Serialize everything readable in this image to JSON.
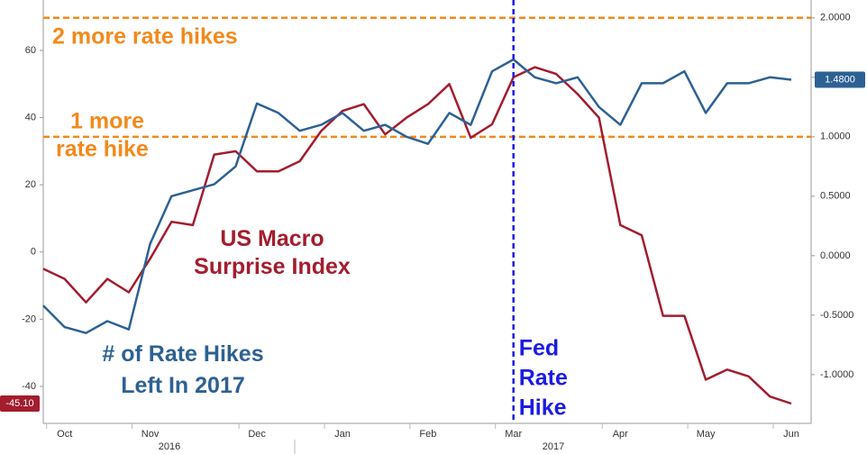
{
  "chart_data": {
    "type": "line",
    "categories": [
      null,
      "Oct",
      null,
      null,
      null,
      "Nov",
      null,
      null,
      null,
      null,
      "Dec",
      null,
      null,
      null,
      "Jan",
      null,
      null,
      null,
      "Feb",
      null,
      null,
      null,
      "Mar",
      null,
      null,
      null,
      null,
      "Apr",
      null,
      null,
      null,
      "May",
      null,
      null,
      null,
      "Jun"
    ],
    "year_labels": [
      "2016",
      "2017"
    ],
    "series": [
      {
        "name": "US Macro Surprise Index",
        "color": "#a31d2e",
        "axis": "y",
        "values": [
          -5,
          -8,
          -15,
          -8,
          -12,
          -2,
          9,
          8,
          29,
          30,
          24,
          24,
          27,
          36,
          42,
          44,
          35,
          40,
          44,
          50,
          34,
          38,
          52,
          55,
          53,
          47,
          40,
          8,
          5,
          -19,
          -19,
          -38,
          -35,
          -37,
          -43,
          -45.1
        ],
        "value_labels": [
          null,
          null,
          null,
          null,
          null,
          null,
          null,
          null,
          null,
          null,
          null,
          null,
          null,
          null,
          null,
          null,
          null,
          null,
          null,
          null,
          null,
          null,
          null,
          null,
          null,
          null,
          null,
          null,
          null,
          null,
          null,
          null,
          null,
          null,
          null,
          "-45.10"
        ]
      },
      {
        "name": "# of Rate Hikes Left In 2017",
        "color": "#2d6193",
        "axis": "y2",
        "values": [
          -0.42,
          -0.6,
          -0.65,
          -0.55,
          -0.62,
          0.1,
          0.5,
          0.55,
          0.6,
          0.75,
          1.28,
          1.2,
          1.05,
          1.1,
          1.2,
          1.05,
          1.1,
          1.0,
          0.94,
          1.2,
          1.1,
          1.55,
          1.65,
          1.5,
          1.45,
          1.5,
          1.25,
          1.1,
          1.45,
          1.45,
          1.55,
          1.2,
          1.45,
          1.45,
          1.5,
          1.48
        ],
        "value_labels": [
          null,
          null,
          null,
          null,
          null,
          null,
          null,
          null,
          null,
          null,
          null,
          null,
          null,
          null,
          null,
          null,
          null,
          null,
          null,
          null,
          null,
          null,
          null,
          null,
          null,
          null,
          null,
          null,
          null,
          null,
          null,
          null,
          null,
          null,
          null,
          "1.4800"
        ]
      }
    ],
    "ylim": [
      -51,
      75
    ],
    "yticks": [
      -40,
      -20,
      0,
      20,
      40,
      60
    ],
    "y2lim": [
      -1.41,
      2.15
    ],
    "y2ticks": [
      {
        "value": -1,
        "label": "-1.0000"
      },
      {
        "value": -0.5,
        "label": "-0.5000"
      },
      {
        "value": 0,
        "label": "0.0000"
      },
      {
        "value": 0.5,
        "label": "0.5000"
      },
      {
        "value": 1,
        "label": "1.0000"
      },
      {
        "value": 1.5,
        "label": "1.5000"
      },
      {
        "value": 2,
        "label": "2.0000"
      }
    ],
    "hlines": [
      {
        "value": 2,
        "axis": "y2",
        "color": "#f28a1c",
        "label": [
          "2 more rate hikes"
        ]
      },
      {
        "value": 1,
        "axis": "y2",
        "color": "#f28a1c",
        "label": [
          "1 more",
          "rate hike"
        ]
      }
    ],
    "vline": {
      "category": "Mar",
      "color": "#1c1ce0",
      "label": [
        "Fed",
        "Rate",
        "Hike"
      ]
    }
  }
}
